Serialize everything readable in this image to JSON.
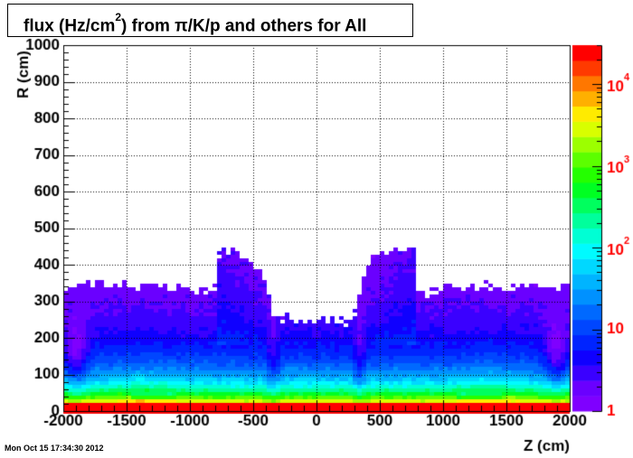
{
  "title": {
    "prefix": "flux (Hz/cm",
    "superscript": "2",
    "suffix": ") from π/K/p and others  for All"
  },
  "footer": {
    "date": "Mon Oct 15 17:34:30 2012"
  },
  "chart_data": {
    "type": "heatmap",
    "xlabel": "Z (cm)",
    "ylabel": "R (cm)",
    "xlim": [
      -2000,
      2000
    ],
    "ylim": [
      0,
      1000
    ],
    "x_ticks": [
      "-2000",
      "-1500",
      "-1000",
      "-500",
      "0",
      "500",
      "1000",
      "1500",
      "2000"
    ],
    "y_ticks": [
      "0",
      "100",
      "200",
      "300",
      "400",
      "500",
      "600",
      "700",
      "800",
      "900",
      "1000"
    ],
    "grid": true,
    "colorbar": {
      "scale": "log",
      "range": [
        1,
        30000
      ],
      "tick_labels": [
        "1",
        "10",
        "10²",
        "10³",
        "10⁴"
      ],
      "tick_values": [
        1,
        10,
        100,
        1000,
        10000
      ],
      "colors": [
        "#7f00ff",
        "#6a00ff",
        "#3a00ff",
        "#0f00ff",
        "#0024ff",
        "#0046ff",
        "#0069ff",
        "#0091ff",
        "#00b4ff",
        "#00d8ff",
        "#00fbff",
        "#00ffd4",
        "#00ff9c",
        "#00ff5e",
        "#00ff22",
        "#24ff00",
        "#5cff00",
        "#9cff00",
        "#d8ff00",
        "#ffeb00",
        "#ffb000",
        "#ff7700",
        "#ff3a00",
        "#ff0000"
      ]
    },
    "series": [
      {
        "description": "upper edge R of populated flux region vs Z",
        "z": [
          -2000,
          -1800,
          -1500,
          -1200,
          -1000,
          -900,
          -800,
          -780,
          -600,
          -500,
          -400,
          -350,
          -320,
          -300,
          -200,
          0,
          200,
          300,
          320,
          350,
          400,
          500,
          600,
          780,
          800,
          900,
          1000,
          1200,
          1500,
          1800,
          2000
        ],
        "r_max": [
          340,
          345,
          350,
          345,
          340,
          330,
          340,
          440,
          440,
          400,
          350,
          280,
          270,
          270,
          250,
          250,
          250,
          270,
          280,
          350,
          400,
          440,
          440,
          440,
          340,
          330,
          340,
          345,
          350,
          345,
          340
        ]
      }
    ]
  }
}
